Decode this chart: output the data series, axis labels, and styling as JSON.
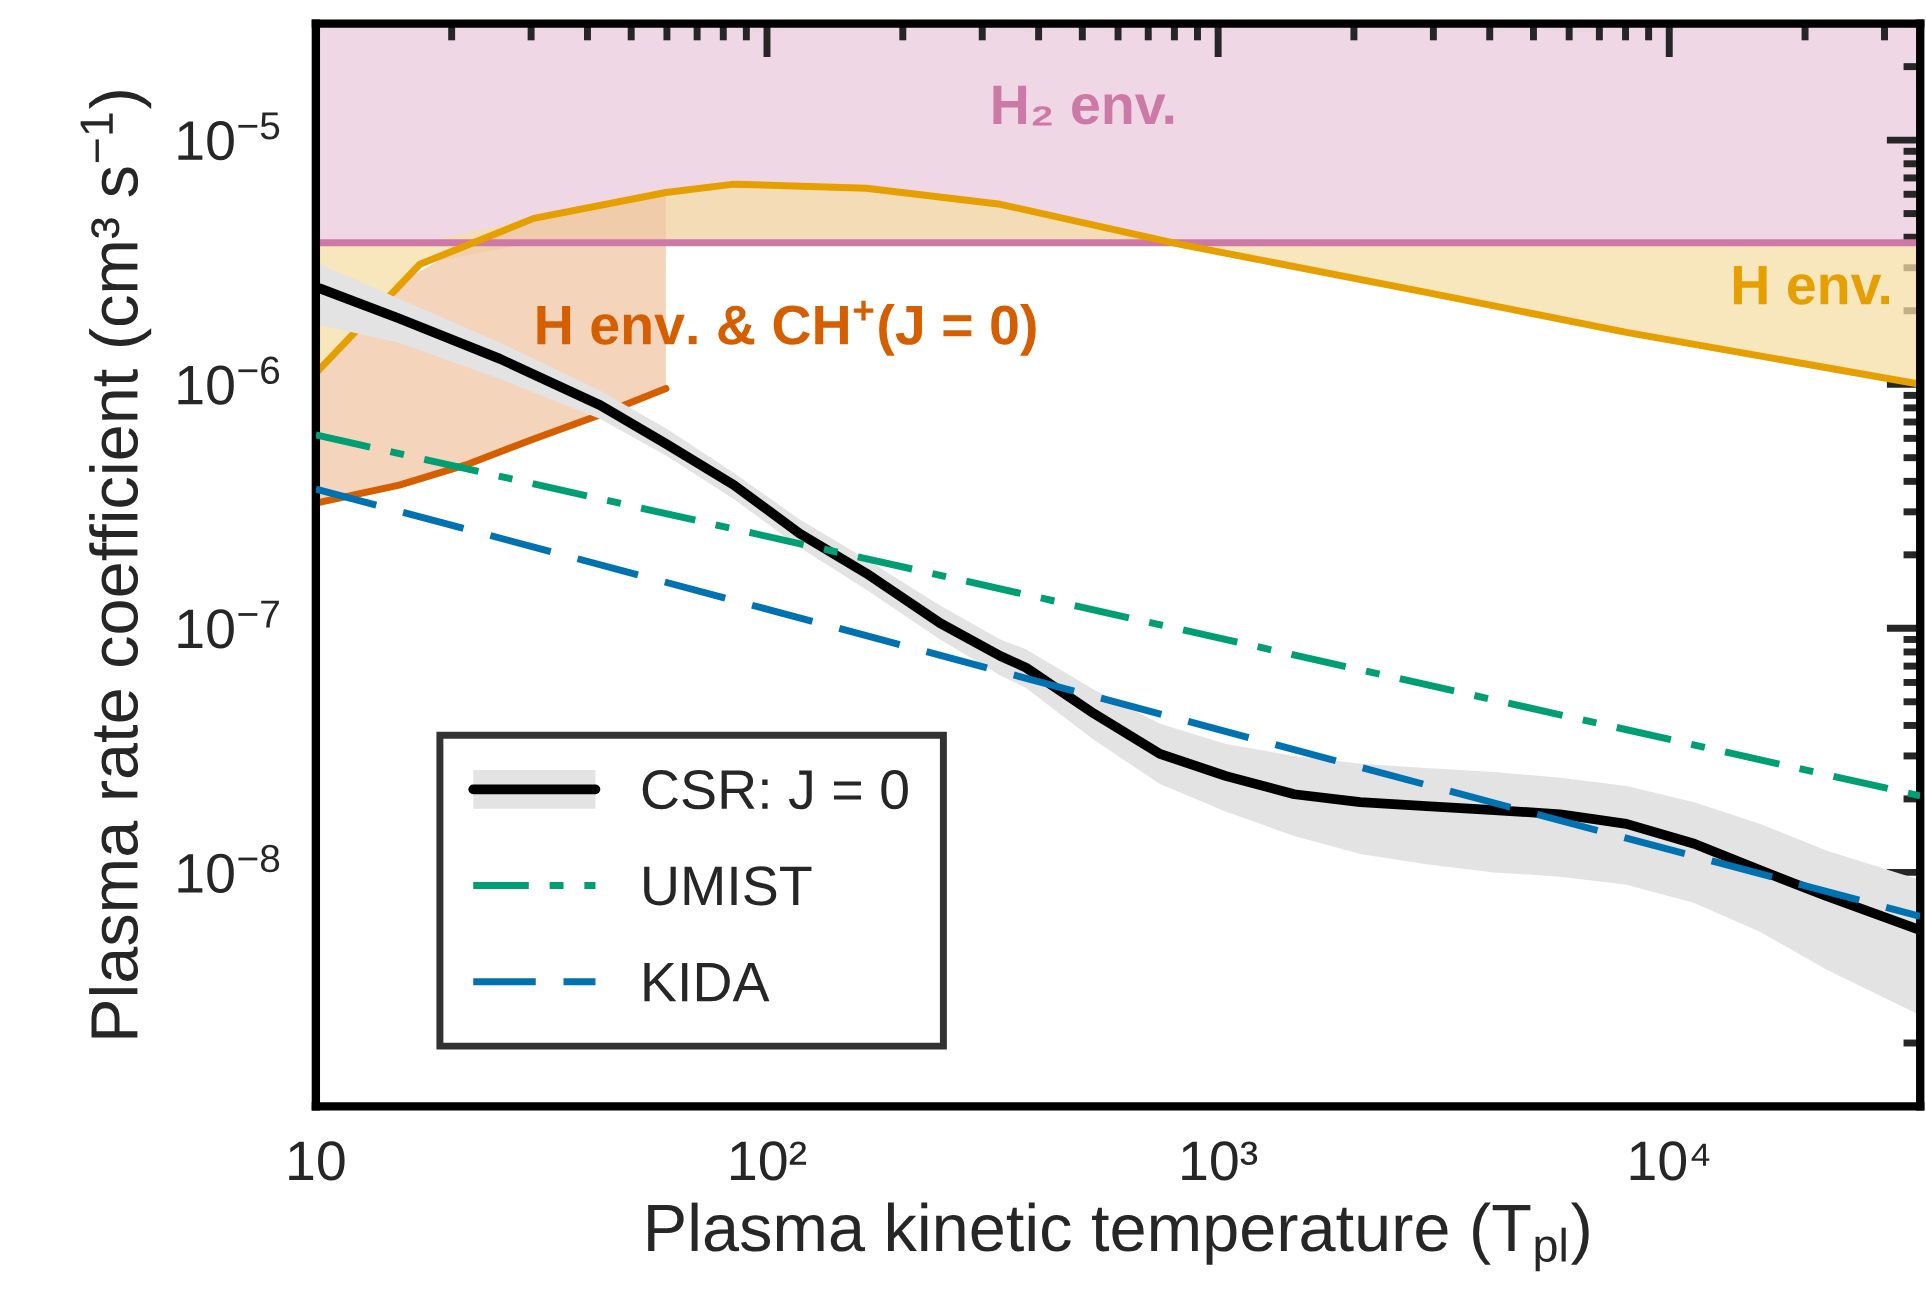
{
  "chart_data": {
    "type": "line",
    "xlabel": "Plasma kinetic temperature (T$_{pl}$)",
    "ylabel": "Plasma rate coefficient (cm³ s$^{−1}$)",
    "log": "xy",
    "grid": false,
    "legend": "bottom left",
    "xlim": [
      10,
      36000
    ],
    "ylim": [
      1.1e-09,
      3e-05
    ],
    "xticks": [
      {
        "value": 10,
        "label": "10"
      },
      {
        "value": 100,
        "label": "10²"
      },
      {
        "value": 1000,
        "label": "10³"
      },
      {
        "value": 10000,
        "label": "10⁴"
      }
    ],
    "yticks": [
      {
        "value": 1e-08,
        "label": "10$^{−8}$"
      },
      {
        "value": 1e-07,
        "label": "10$^{−7}$"
      },
      {
        "value": 1e-06,
        "label": "10$^{−6}$"
      },
      {
        "value": 1e-05,
        "label": "10$^{−5}$"
      }
    ],
    "bands": [
      {
        "axis": "y",
        "from": 3.8e-06,
        "to": 3e-05,
        "label": "H₂ env.",
        "color": "#f0d7e5"
      }
    ],
    "ref_lines": [
      {
        "axis": "y",
        "value": 3.8e-06,
        "color": "#cc79a7"
      }
    ],
    "series": [
      {
        "name": "H env.",
        "color": "#e69f00",
        "x": [
          10,
          17.0,
          30.4,
          59.7,
          84.5,
          166,
          329,
          824,
          2893,
          8035,
          36000
        ],
        "values": [
          1.11e-06,
          3.1e-06,
          4.78e-06,
          6.1e-06,
          6.6e-06,
          6.35e-06,
          5.46e-06,
          3.74e-06,
          2.38e-06,
          1.63e-06,
          1e-06
        ],
        "lower": [
          1.11e-06,
          3.1e-06,
          3.8e-06,
          3.8e-06,
          3.8e-06,
          3.8e-06,
          3.8e-06,
          3.74e-06,
          2.38e-06,
          1.63e-06,
          1e-06
        ],
        "upper": [
          3.8e-06,
          3.8e-06,
          4.78e-06,
          6.1e-06,
          6.6e-06,
          6.35e-06,
          5.46e-06,
          3.8e-06,
          3.8e-06,
          3.8e-06,
          3.8e-06
        ]
      },
      {
        "name": "H env. & CH$^{+}$(J = 0)",
        "color": "#d55e00",
        "x": [
          10,
          15.3,
          21.5,
          30.4,
          42.7,
          59.7
        ],
        "values": [
          3.26e-07,
          3.86e-07,
          4.67e-07,
          5.97e-07,
          7.5e-07,
          9.6e-07
        ],
        "lower": [
          3.26e-07,
          3.86e-07,
          4.67e-07,
          5.97e-07,
          7.5e-07,
          9.6e-07
        ],
        "upper": [
          1.11e-06,
          2.6e-06,
          3.7e-06,
          4.78e-06,
          5.5e-06,
          6.1e-06
        ]
      },
      {
        "name": "CSR: J = 0",
        "color": "#000000",
        "line_style": "solid",
        "x": [
          10.2,
          15.3,
          25.6,
          42.7,
          59.7,
          84.5,
          118,
          166,
          242,
          329,
          375,
          531,
          743,
          1042,
          1475,
          2065,
          2893,
          4093,
          5731,
          8035,
          11360,
          15920,
          22290,
          36000
        ],
        "values": [
          2.47e-06,
          1.86e-06,
          1.27e-06,
          8.2e-07,
          5.7e-07,
          3.86e-07,
          2.45e-07,
          1.68e-07,
          1.05e-07,
          7.7e-08,
          6.9e-08,
          4.47e-08,
          3.06e-08,
          2.48e-08,
          2.09e-08,
          1.94e-08,
          1.87e-08,
          1.8e-08,
          1.73e-08,
          1.58e-08,
          1.31e-08,
          1.02e-08,
          8e-09,
          5.8e-09
        ],
        "upper": [
          3.1e-06,
          2.24e-06,
          1.48e-06,
          9.4e-07,
          6.6e-07,
          4.33e-07,
          2.8e-07,
          1.92e-07,
          1.24e-07,
          9e-08,
          8.2e-08,
          5.6e-08,
          4.06e-08,
          3.36e-08,
          3e-08,
          2.79e-08,
          2.68e-08,
          2.58e-08,
          2.44e-08,
          2.26e-08,
          1.94e-08,
          1.58e-08,
          1.23e-08,
          9.3e-09
        ],
        "lower": [
          1.75e-06,
          1.48e-06,
          1.05e-06,
          7.2e-07,
          5.1e-07,
          3.38e-07,
          2.15e-07,
          1.44e-07,
          9e-08,
          6.4e-08,
          5.7e-08,
          3.49e-08,
          2.3e-08,
          1.77e-08,
          1.41e-08,
          1.19e-08,
          1.08e-08,
          1e-08,
          9.6e-09,
          8.9e-09,
          7.5e-09,
          5.7e-09,
          4e-09,
          2.6e-09
        ]
      },
      {
        "name": "UMIST",
        "color": "#009e73",
        "line_style": "dashdot",
        "x": [
          10,
          36000
        ],
        "values": [
          6.2e-07,
          2.06e-08
        ]
      },
      {
        "name": "KIDA",
        "color": "#0072b2",
        "line_style": "dashed",
        "x": [
          10,
          36000
        ],
        "values": [
          3.72e-07,
          6.6e-09
        ]
      }
    ]
  }
}
